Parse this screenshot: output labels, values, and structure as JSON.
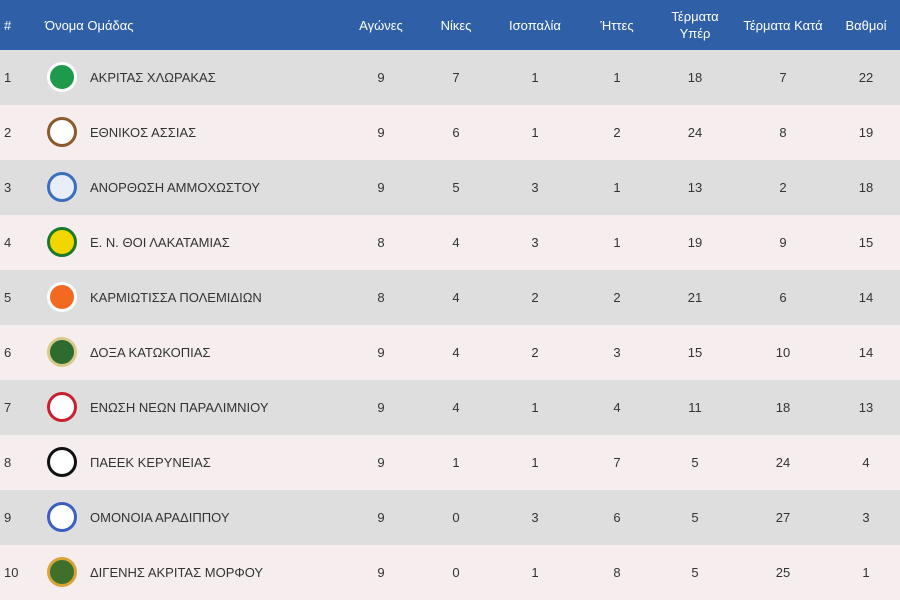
{
  "table": {
    "columns": [
      "#",
      "Όνομα Ομάδας",
      "Αγώνες",
      "Νίκες",
      "Ισοπαλία",
      "Ήττες",
      "Τέρματα Υπέρ",
      "Τέρματα Κατά",
      "Βαθμοί"
    ],
    "rows": [
      [
        1,
        "ΑΚΡΙΤΑΣ ΧΛΩΡΑΚΑΣ",
        9,
        7,
        1,
        1,
        18,
        7,
        22
      ],
      [
        2,
        "ΕΘΝΙΚΟΣ ΑΣΣΙΑΣ",
        9,
        6,
        1,
        2,
        24,
        8,
        19
      ],
      [
        3,
        "ΑΝΟΡΘΩΣΗ ΑΜΜΟΧΩΣΤΟΥ",
        9,
        5,
        3,
        1,
        13,
        2,
        18
      ],
      [
        4,
        "Ε. Ν. ΘΟΙ ΛΑΚΑΤΑΜΙΑΣ",
        8,
        4,
        3,
        1,
        19,
        9,
        15
      ],
      [
        5,
        "ΚΑΡΜΙΩΤΙΣΣΑ ΠΟΛΕΜΙΔΙΩΝ",
        8,
        4,
        2,
        2,
        21,
        6,
        14
      ],
      [
        6,
        "ΔΟΞΑ ΚΑΤΩΚΟΠΙΑΣ",
        9,
        4,
        2,
        3,
        15,
        10,
        14
      ],
      [
        7,
        "ΕΝΩΣΗ ΝΕΩΝ ΠΑΡΑΛΙΜΝΙΟΥ",
        9,
        4,
        1,
        4,
        11,
        18,
        13
      ],
      [
        8,
        "ΠΑΕΕΚ ΚΕΡΥΝΕΙΑΣ",
        9,
        1,
        1,
        7,
        5,
        24,
        4
      ],
      [
        9,
        "ΟΜΟΝΟΙΑ ΑΡΑΔΙΠΠΟΥ",
        9,
        0,
        3,
        6,
        5,
        27,
        3
      ],
      [
        10,
        "ΔΙΓΕΝΗΣ ΑΚΡΙΤΑΣ ΜΟΡΦΟΥ",
        9,
        0,
        1,
        8,
        5,
        25,
        1
      ]
    ]
  }
}
